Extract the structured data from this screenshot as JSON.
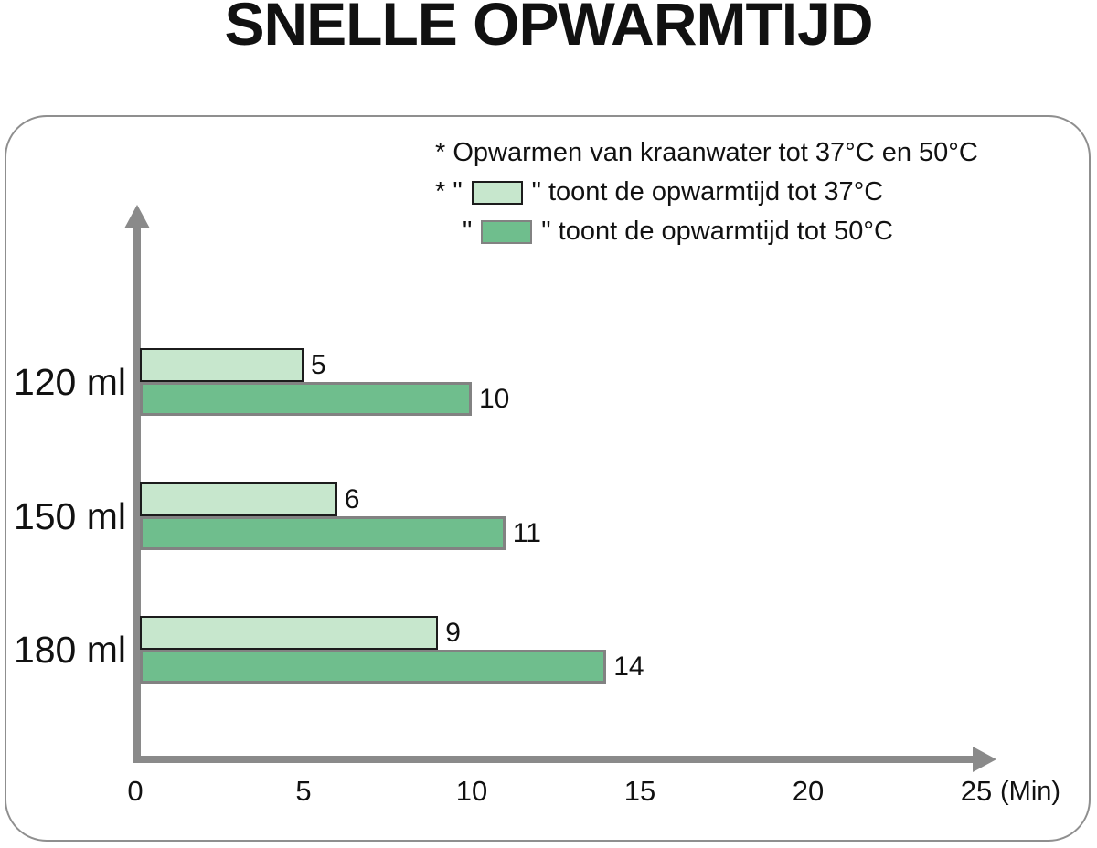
{
  "title": "SNELLE OPWARMTIJD",
  "legend": {
    "note": "* Opwarmen van kraanwater tot 37°C en 50°C",
    "entry_37": {
      "prefix": "* \"",
      "suffix": "\" toont de opwarmtijd tot 37°C"
    },
    "entry_50": {
      "prefix": "\"",
      "suffix": "\" toont de opwarmtijd tot 50°C"
    }
  },
  "colors": {
    "axis_gray": "#8a8a8a",
    "panel_border": "#8f8f8f",
    "text": "#111111"
  },
  "chart_data": {
    "type": "bar",
    "orientation": "horizontal",
    "title": "SNELLE OPWARMTIJD",
    "categories": [
      "120 ml",
      "150 ml",
      "180 ml"
    ],
    "series": [
      {
        "name": "opwarmtijd tot 37°C",
        "color": "#c7e7cd",
        "border_color": "#1c1c1c",
        "values": [
          5,
          6,
          9
        ]
      },
      {
        "name": "opwarmtijd tot 50°C",
        "color": "#6fbe8d",
        "border_color": "#828282",
        "values": [
          10,
          11,
          14
        ]
      }
    ],
    "x_ticks": [
      0,
      5,
      10,
      15,
      20,
      25
    ],
    "x_unit": "(Min)",
    "xlim": [
      0,
      25
    ],
    "grid": false,
    "legend_position": "top-right"
  }
}
